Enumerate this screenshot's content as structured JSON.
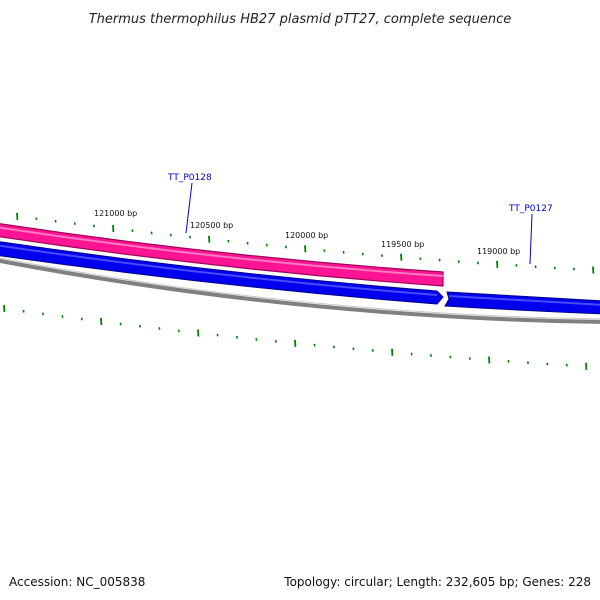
{
  "title": "Thermus thermophilus HB27 plasmid pTT27, complete sequence",
  "footer": {
    "accession": "Accession: NC_005838",
    "summary": "Topology: circular; Length: 232,605 bp; Genes: 228"
  },
  "colors": {
    "forward_feature": "#ff1493",
    "forward_feature_edge": "#a0005a",
    "reverse_feature": "#0000ee",
    "backbone": "#808080",
    "tick": "#008000",
    "gene_label": "#0000cc"
  },
  "bp_labels": [
    "121000 bp",
    "120500 bp",
    "120000 bp",
    "119500 bp",
    "119000 bp"
  ],
  "genes": [
    {
      "name": "TT_P0128",
      "strand": "forward"
    },
    {
      "name": "TT_P0127",
      "strand": "reverse"
    }
  ]
}
